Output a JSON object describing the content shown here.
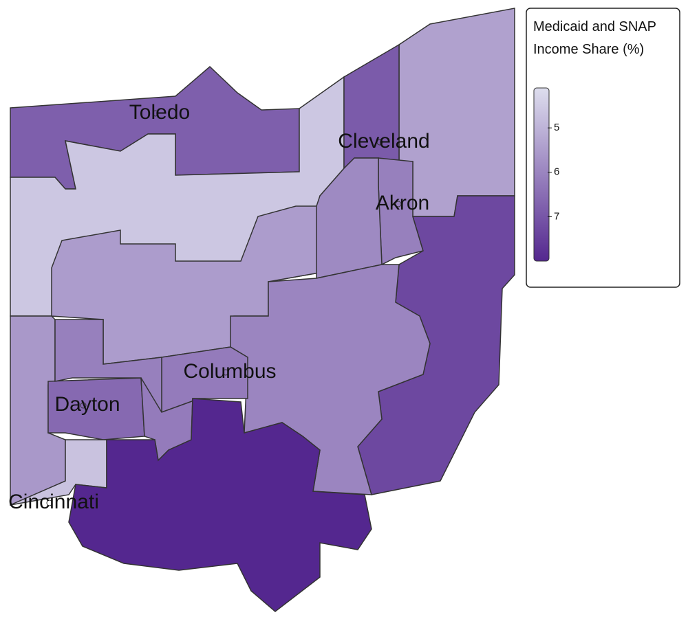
{
  "map": {
    "legend_title": [
      "Medicaid and SNAP",
      "Income Share (%)"
    ],
    "scale_range": [
      4.1,
      8.0
    ],
    "scale_colors": [
      "#dedeee",
      "#54278f"
    ],
    "legend_ticks": [
      5,
      6,
      7
    ],
    "cities": [
      "Toledo",
      "Cleveland",
      "Akron",
      "Columbus",
      "Dayton",
      "Cincinnati"
    ],
    "region_values": [
      6.8,
      5.4,
      4.6,
      6.9,
      5.5,
      6.1,
      5.9,
      7.3,
      6.0,
      6.2,
      5.6,
      6.6,
      6.1,
      6.2,
      4.7,
      8.0
    ]
  }
}
